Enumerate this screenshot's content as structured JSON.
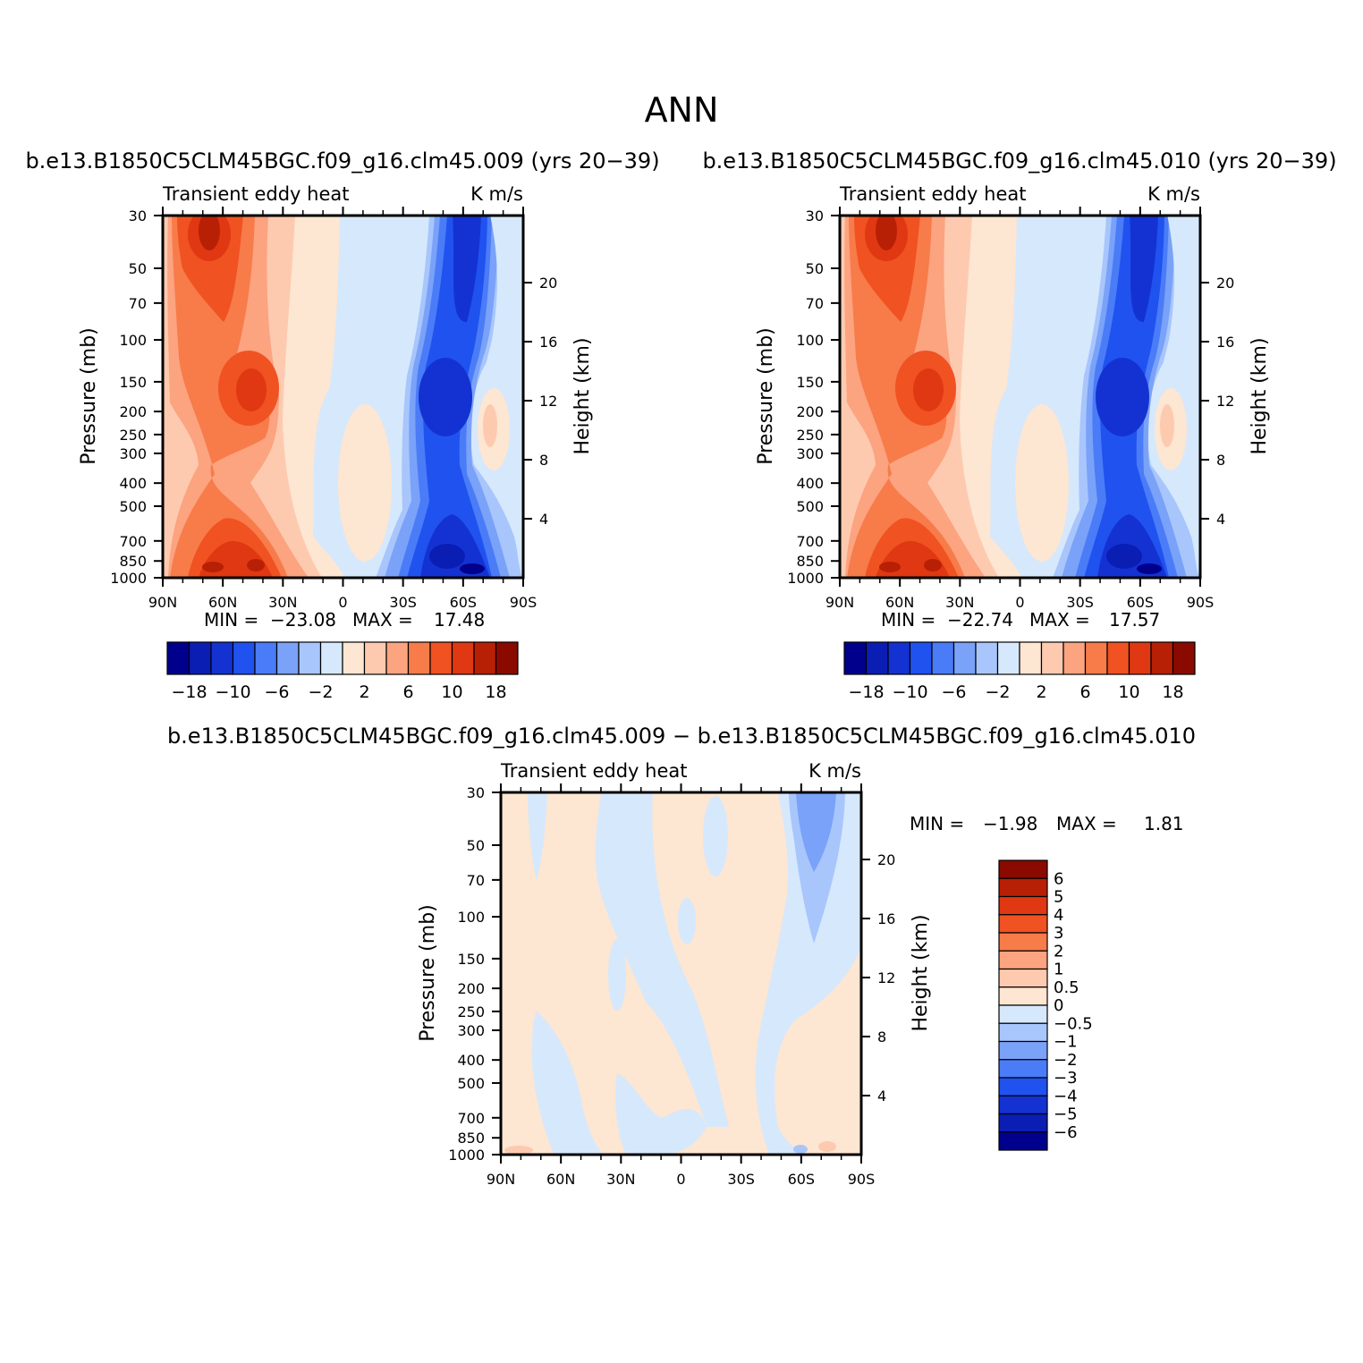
{
  "figure": {
    "title": "ANN"
  },
  "chart_data": [
    {
      "type": "heatmap",
      "title": "b.e13.B1850C5CLM45BGC.f09_g16.clm45.009 (yrs 20−39)",
      "subtitle_left": "Transient eddy heat",
      "subtitle_right": "K m/s",
      "ylabel": "Pressure (mb)",
      "ylabel_right": "Height (km)",
      "xticks": [
        "90N",
        "60N",
        "30N",
        "0",
        "30S",
        "60S",
        "90S"
      ],
      "yticks": [
        30,
        50,
        70,
        100,
        150,
        200,
        250,
        300,
        400,
        500,
        700,
        850,
        1000
      ],
      "yticks_right": [
        20,
        16,
        12,
        8,
        4
      ],
      "ylim": [
        1000,
        30
      ],
      "xlim": [
        90,
        -90
      ],
      "min_label": "MIN =",
      "min_value": "−23.08",
      "max_label": "MAX =",
      "max_value": "17.48",
      "colorbar": {
        "orientation": "horizontal",
        "levels": [
          -18,
          -14,
          -10,
          -8,
          -6,
          -4,
          -2,
          0,
          2,
          4,
          6,
          8,
          10,
          14,
          18
        ],
        "tick_labels": [
          "−18",
          "−10",
          "−6",
          "−2",
          "2",
          "6",
          "10",
          "18"
        ]
      }
    },
    {
      "type": "heatmap",
      "title": "b.e13.B1850C5CLM45BGC.f09_g16.clm45.010 (yrs 20−39)",
      "subtitle_left": "Transient eddy heat",
      "subtitle_right": "K m/s",
      "ylabel": "Pressure (mb)",
      "ylabel_right": "Height (km)",
      "xticks": [
        "90N",
        "60N",
        "30N",
        "0",
        "30S",
        "60S",
        "90S"
      ],
      "yticks": [
        30,
        50,
        70,
        100,
        150,
        200,
        250,
        300,
        400,
        500,
        700,
        850,
        1000
      ],
      "yticks_right": [
        20,
        16,
        12,
        8,
        4
      ],
      "ylim": [
        1000,
        30
      ],
      "xlim": [
        90,
        -90
      ],
      "min_label": "MIN =",
      "min_value": "−22.74",
      "max_label": "MAX =",
      "max_value": "17.57",
      "colorbar": {
        "orientation": "horizontal",
        "levels": [
          -18,
          -14,
          -10,
          -8,
          -6,
          -4,
          -2,
          0,
          2,
          4,
          6,
          8,
          10,
          14,
          18
        ],
        "tick_labels": [
          "−18",
          "−10",
          "−6",
          "−2",
          "2",
          "6",
          "10",
          "18"
        ]
      }
    },
    {
      "type": "heatmap",
      "title": "b.e13.B1850C5CLM45BGC.f09_g16.clm45.009 − b.e13.B1850C5CLM45BGC.f09_g16.clm45.010",
      "subtitle_left": "Transient eddy heat",
      "subtitle_right": "K m/s",
      "ylabel": "Pressure (mb)",
      "ylabel_right": "Height (km)",
      "xticks": [
        "90N",
        "60N",
        "30N",
        "0",
        "30S",
        "60S",
        "90S"
      ],
      "yticks": [
        30,
        50,
        70,
        100,
        150,
        200,
        250,
        300,
        400,
        500,
        700,
        850,
        1000
      ],
      "yticks_right": [
        20,
        16,
        12,
        8,
        4
      ],
      "ylim": [
        1000,
        30
      ],
      "xlim": [
        90,
        -90
      ],
      "min_label": "MIN =",
      "min_value": "−1.98",
      "max_label": "MAX =",
      "max_value": "1.81",
      "colorbar": {
        "orientation": "vertical",
        "tick_labels": [
          "6",
          "5",
          "4",
          "3",
          "2",
          "1",
          "0.5",
          "0",
          "−0.5",
          "−1",
          "−2",
          "−3",
          "−4",
          "−5",
          "−6"
        ]
      }
    }
  ],
  "palette_bluered": [
    "#00008c",
    "#0a1eb4",
    "#1432d2",
    "#2052f0",
    "#4a7cf8",
    "#7aa2f8",
    "#a8c6fc",
    "#d6e8fc",
    "#fde6d2",
    "#fdcab0",
    "#fca380",
    "#f87b4a",
    "#f05222",
    "#e03812",
    "#b82006",
    "#8a0a00"
  ]
}
